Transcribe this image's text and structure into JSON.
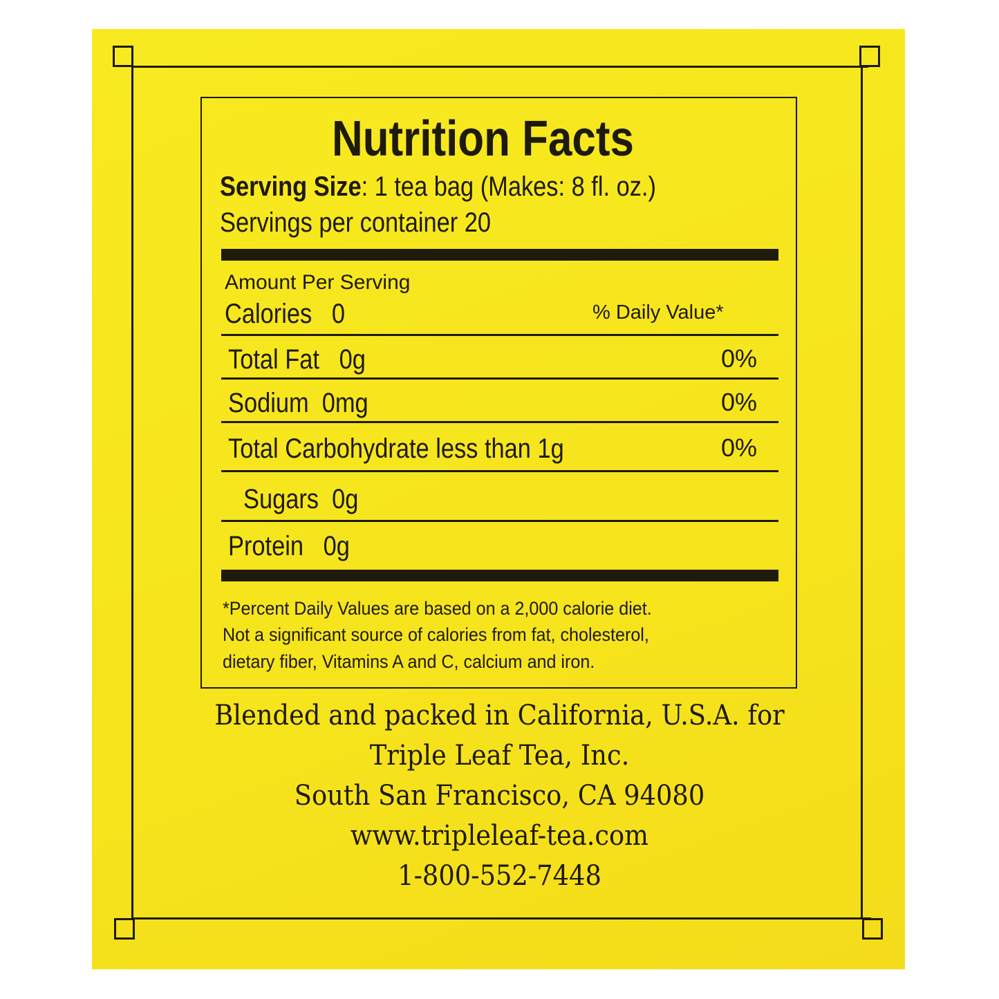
{
  "label": {
    "title": "Nutrition Facts",
    "serving_size_label": "Serving Size",
    "serving_size_value": ": 1 tea bag (Makes: 8 fl. oz.)",
    "servings_per_container": "Servings per container 20",
    "amount_per_serving": "Amount Per Serving",
    "calories": "Calories   0",
    "daily_value_header": "% Daily Value*",
    "nutrients": [
      {
        "name": "Total Fat   0g",
        "dv": "0%"
      },
      {
        "name": "Sodium  0mg",
        "dv": "0%"
      },
      {
        "name": "Total Carbohydrate less than 1g",
        "dv": "0%"
      },
      {
        "name": "Sugars  0g",
        "dv": ""
      },
      {
        "name": "Protein   0g",
        "dv": ""
      }
    ],
    "footnote": [
      "*Percent Daily Values are based on a 2,000 calorie diet.",
      "Not a significant source of calories from fat, cholesterol,",
      "dietary fiber, Vitamins A and C, calcium and iron."
    ]
  },
  "company": {
    "line1": "Blended and packed in California, U.S.A. for",
    "line2": "Triple Leaf Tea, Inc.",
    "line3": "South San Francisco, CA 94080",
    "website": "www.tripleleaf-tea.com",
    "phone": "1-800-552-7448"
  },
  "colors": {
    "background": "#f7e81e",
    "ink": "#1e1a0c"
  }
}
